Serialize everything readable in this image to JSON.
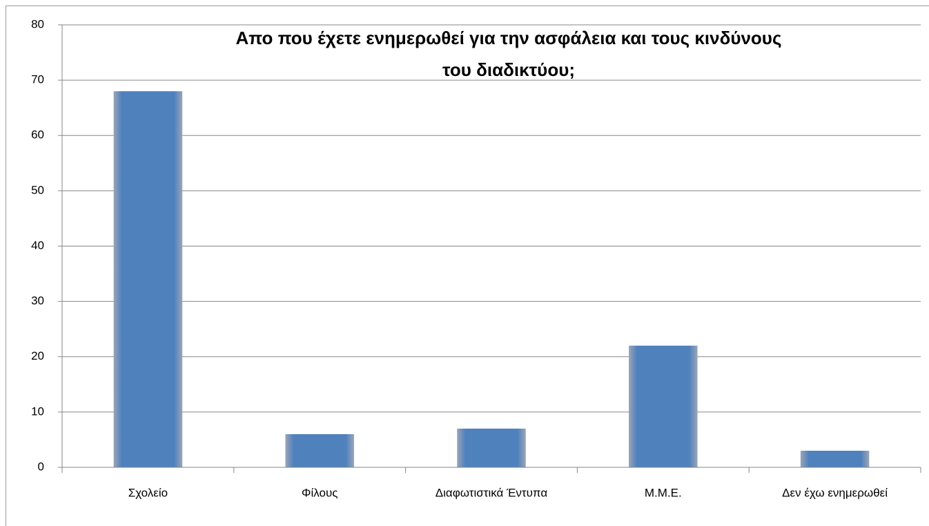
{
  "chart_data": {
    "type": "bar",
    "title": [
      "Απο που έχετε ενημερωθεί για την ασφάλεια και τους κινδύνους",
      "του διαδικτύου;"
    ],
    "categories": [
      "Σχολείο",
      "Φίλους",
      "Διαφωτιστικά Έντυπα",
      "Μ.Μ.Ε.",
      "Δεν έχω ενημερωθεί"
    ],
    "values": [
      68,
      6,
      7,
      22,
      3
    ],
    "color": "#4f81bd",
    "ylim": [
      0,
      80
    ],
    "yticks": [
      0,
      10,
      20,
      30,
      40,
      50,
      60,
      70,
      80
    ],
    "grid": true
  }
}
